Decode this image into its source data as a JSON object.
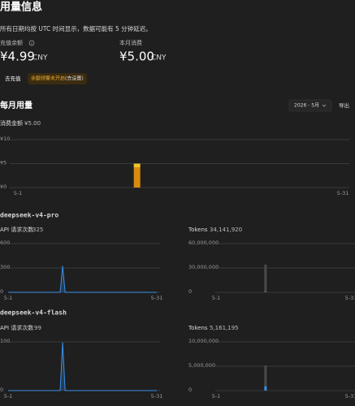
{
  "header": {
    "title": "用量信息",
    "note": "所有日期均按 UTC 时间显示，数据可能有 5 分钟延迟。"
  },
  "balance": {
    "label": "充值余额",
    "amount": "¥4.99",
    "currency": "CNY"
  },
  "month_spend": {
    "label": "本月消费",
    "amount": "¥5.00",
    "currency": "CNY"
  },
  "actions": {
    "topup": "去充值",
    "alert": "余额预警未开启",
    "alert_link": "(去设置)"
  },
  "usage": {
    "title": "每月用量",
    "month": "2026 - 5月",
    "export": "导出"
  },
  "models": [
    "deepseek-v4-pro",
    "deepseek-v4-flash"
  ],
  "chart_data": [
    {
      "type": "bar",
      "title": "消费金额",
      "subtitle": "¥5.00",
      "x": [
        12
      ],
      "series": [
        {
          "color": "#d98a0f",
          "values": [
            4.2
          ]
        },
        {
          "color": "#f2c230",
          "values": [
            0.8
          ]
        }
      ],
      "xlim": [
        1,
        31
      ],
      "xticks": [
        {
          "value": 1,
          "label": "5-1"
        },
        {
          "value": 31,
          "label": "5-31"
        }
      ],
      "ylim": [
        0,
        10
      ],
      "yticks": [
        {
          "value": 0,
          "label": "¥0"
        },
        {
          "value": 5,
          "label": "¥5"
        },
        {
          "value": 10,
          "label": "¥10"
        }
      ],
      "grid": true
    },
    {
      "type": "line",
      "title": "API 请求次数",
      "subtitle": "325",
      "x": [
        1,
        11.5,
        12,
        12.5,
        31
      ],
      "values": [
        0,
        0,
        325,
        0,
        0
      ],
      "color": "#3b8fe8",
      "xlim": [
        1,
        31
      ],
      "xticks": [
        {
          "value": 1,
          "label": "5-1"
        },
        {
          "value": 31,
          "label": "5-31"
        }
      ],
      "ylim": [
        0,
        600
      ],
      "yticks": [
        0,
        300,
        600
      ],
      "grid": true
    },
    {
      "type": "bar",
      "title": "Tokens",
      "subtitle": "34,141,920",
      "x": [
        12
      ],
      "series": [
        {
          "color": "#3b8fe8",
          "values": [
            600000
          ]
        },
        {
          "color": "#4a4a4a",
          "values": [
            33541920
          ]
        }
      ],
      "xlim": [
        1,
        31
      ],
      "xticks": [
        {
          "value": 1,
          "label": "5-1"
        },
        {
          "value": 31,
          "label": "5-31"
        }
      ],
      "ylim": [
        0,
        60000000
      ],
      "yticks": [
        0,
        {
          "value": 30000000,
          "label": "30,000,000"
        },
        {
          "value": 60000000,
          "label": "60,000,000"
        }
      ],
      "grid": true
    },
    {
      "type": "line",
      "title": "API 请求次数",
      "subtitle": "99",
      "x": [
        1,
        11.5,
        12,
        12.5,
        31
      ],
      "values": [
        0,
        0,
        99,
        0,
        0
      ],
      "color": "#3b8fe8",
      "xlim": [
        1,
        31
      ],
      "xticks": [
        {
          "value": 1,
          "label": "5-1"
        },
        {
          "value": 31,
          "label": "5-31"
        }
      ],
      "ylim": [
        0,
        100
      ],
      "yticks": [
        0,
        100
      ],
      "grid": true
    },
    {
      "type": "bar",
      "title": "Tokens",
      "subtitle": "5,161,195",
      "x": [
        12
      ],
      "series": [
        {
          "color": "#3b8fe8",
          "values": [
            900000
          ]
        },
        {
          "color": "#4a4a4a",
          "values": [
            4261195
          ]
        }
      ],
      "xlim": [
        1,
        31
      ],
      "xticks": [
        {
          "value": 1,
          "label": "5-1"
        },
        {
          "value": 31,
          "label": "5-31"
        }
      ],
      "ylim": [
        0,
        10000000
      ],
      "yticks": [
        0,
        {
          "value": 5000000,
          "label": "5,000,000"
        },
        {
          "value": 10000000,
          "label": "10,000,000"
        }
      ],
      "grid": true
    }
  ]
}
